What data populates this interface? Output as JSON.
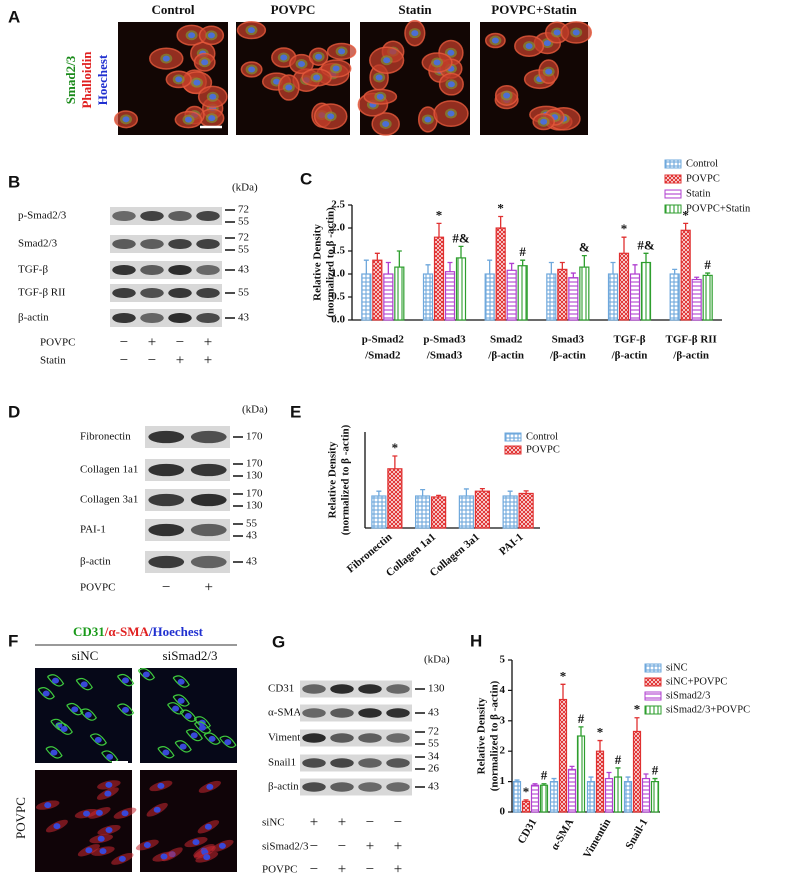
{
  "panel_a": {
    "letter": "A",
    "columns": [
      "Control",
      "POVPC",
      "Statin",
      "POVPC+Statin"
    ],
    "stain_labels": [
      "Smad2/3",
      "Phalloidin",
      "Hoechest"
    ]
  },
  "blot_b": {
    "letter": "B",
    "kda_unit": "(kDa)",
    "rows": [
      {
        "label": "p-Smad2/3",
        "kda": [
          "72",
          "55"
        ]
      },
      {
        "label": "Smad2/3",
        "kda": [
          "72",
          "55"
        ]
      },
      {
        "label": "TGF-β",
        "kda": [
          "43"
        ]
      },
      {
        "label": "TGF-β RII",
        "kda": [
          "55"
        ]
      },
      {
        "label": "β-actin",
        "kda": [
          "43"
        ]
      }
    ],
    "conditions": [
      {
        "label": "POVPC",
        "signs": [
          "−",
          "+",
          "−",
          "+"
        ]
      },
      {
        "label": "Statin",
        "signs": [
          "−",
          "−",
          "+",
          "+"
        ]
      }
    ]
  },
  "blot_d": {
    "letter": "D",
    "kda_unit": "(kDa)",
    "rows": [
      {
        "label": "Fibronectin",
        "kda": [
          "170"
        ]
      },
      {
        "label": "Collagen 1a1",
        "kda": [
          "170",
          "130"
        ]
      },
      {
        "label": "Collagen 3a1",
        "kda": [
          "170",
          "130"
        ]
      },
      {
        "label": "PAI-1",
        "kda": [
          "55",
          "43"
        ]
      },
      {
        "label": "β-actin",
        "kda": [
          "43"
        ]
      }
    ],
    "conditions": [
      {
        "label": "POVPC",
        "signs": [
          "−",
          "+"
        ]
      }
    ]
  },
  "panel_f": {
    "letter": "F",
    "title": [
      "CD31",
      "/α-SMA",
      "/Hoechest"
    ],
    "columns": [
      "siNC",
      "siSmad2/3"
    ],
    "row_label": "POVPC"
  },
  "blot_g": {
    "letter": "G",
    "kda_unit": "(kDa)",
    "rows": [
      {
        "label": "CD31",
        "kda": [
          "130"
        ]
      },
      {
        "label": "α-SMA",
        "kda": [
          "43"
        ]
      },
      {
        "label": "Vimentin",
        "kda": [
          "72",
          "55"
        ]
      },
      {
        "label": "Snail1",
        "kda": [
          "34",
          "26"
        ]
      },
      {
        "label": "β-actin",
        "kda": [
          "43"
        ]
      }
    ],
    "conditions": [
      {
        "label": "siNC",
        "signs": [
          "+",
          "+",
          "−",
          "−"
        ]
      },
      {
        "label": "siSmad2/3",
        "signs": [
          "−",
          "−",
          "+",
          "+"
        ]
      },
      {
        "label": "POVPC",
        "signs": [
          "−",
          "+",
          "−",
          "+"
        ]
      }
    ]
  },
  "chart_data": [
    {
      "type": "bar",
      "panel_label": "C",
      "ylabel": [
        "Relative Density",
        "(normalized to β -actin)"
      ],
      "categories": [
        [
          "p-Smad2",
          "/Smad2"
        ],
        [
          "p-Smad3",
          "/Smad3"
        ],
        [
          "Smad2",
          "/β-actin"
        ],
        [
          "Smad3",
          "/β-actin"
        ],
        [
          "TGF-β",
          "/β-actin"
        ],
        [
          "TGF-β RII",
          "/β-actin"
        ]
      ],
      "ylim": [
        0,
        2.5
      ],
      "yticks": [
        {
          "value": 0,
          "label": "0.0"
        },
        0.5,
        {
          "value": 1,
          "label": "1.0"
        },
        1.5,
        {
          "value": 2,
          "label": "2.0"
        },
        2.5
      ],
      "series": [
        {
          "name": "Control",
          "color": "#6fa8dc",
          "values": [
            1.0,
            1.0,
            1.0,
            1.0,
            1.0,
            1.0
          ],
          "error": [
            0.3,
            0.2,
            0.3,
            0.25,
            0.25,
            0.1
          ]
        },
        {
          "name": "POVPC",
          "color": "#e03030",
          "values": [
            1.3,
            1.8,
            2.0,
            1.1,
            1.45,
            1.95
          ],
          "error": [
            0.15,
            0.3,
            0.25,
            0.15,
            0.35,
            0.15
          ],
          "annotations": [
            null,
            "*",
            "*",
            null,
            "*",
            "*"
          ]
        },
        {
          "name": "Statin",
          "color": "#b040d0",
          "values": [
            1.0,
            1.05,
            1.08,
            0.92,
            1.0,
            0.88
          ],
          "error": [
            0.25,
            0.2,
            0.15,
            0.1,
            0.2,
            0.05
          ]
        },
        {
          "name": "POVPC+Statin",
          "color": "#2e9e2e",
          "values": [
            1.15,
            1.35,
            1.18,
            1.15,
            1.25,
            0.97
          ],
          "error": [
            0.35,
            0.25,
            0.12,
            0.25,
            0.2,
            0.05
          ],
          "annotations": [
            null,
            "#&",
            "#",
            "&",
            "#&",
            "#"
          ]
        }
      ]
    },
    {
      "type": "bar",
      "panel_label": "E",
      "ylabel": [
        "Relative Density",
        "(normalized to β -actin)"
      ],
      "categories": [
        "Fibronectin",
        "Collagen 1a1",
        "Collagen 3a1",
        "PAI-1"
      ],
      "ylim": [
        0,
        3
      ],
      "series": [
        {
          "name": "Control",
          "color": "#6fa8dc",
          "values": [
            1.0,
            1.0,
            1.0,
            1.0
          ],
          "error": [
            0.15,
            0.2,
            0.22,
            0.15
          ]
        },
        {
          "name": "POVPC",
          "color": "#e03030",
          "values": [
            1.85,
            0.97,
            1.15,
            1.08
          ],
          "error": [
            0.4,
            0.05,
            0.08,
            0.08
          ],
          "annotations": [
            "*",
            null,
            null,
            null
          ]
        }
      ]
    },
    {
      "type": "bar",
      "panel_label": "H",
      "ylabel": [
        "Relative Density",
        "(normalized to β -actin)"
      ],
      "categories": [
        "CD31",
        "α-SMA",
        "Vimentin",
        "Snail-1"
      ],
      "ylim": [
        0,
        5
      ],
      "yticks": [
        0,
        1,
        2,
        3,
        4,
        5
      ],
      "series": [
        {
          "name": "siNC",
          "color": "#6fa8dc",
          "values": [
            1.0,
            1.0,
            1.0,
            1.0
          ],
          "error": [
            0.05,
            0.1,
            0.15,
            0.15
          ]
        },
        {
          "name": "siNC+POVPC",
          "color": "#e03030",
          "values": [
            0.35,
            3.7,
            2.0,
            2.65
          ],
          "error": [
            0.05,
            0.5,
            0.35,
            0.45
          ],
          "annotations": [
            "*",
            "*",
            "*",
            "*"
          ]
        },
        {
          "name": "siSmad2/3",
          "color": "#b040d0",
          "values": [
            0.88,
            1.4,
            1.1,
            1.1
          ],
          "error": [
            0.05,
            0.1,
            0.2,
            0.15
          ]
        },
        {
          "name": "siSmad2/3+POVPC",
          "color": "#2e9e2e",
          "values": [
            0.88,
            2.5,
            1.15,
            1.0
          ],
          "error": [
            0.05,
            0.3,
            0.3,
            0.1
          ],
          "annotations": [
            "#",
            "#",
            "#",
            "#"
          ]
        }
      ]
    }
  ]
}
